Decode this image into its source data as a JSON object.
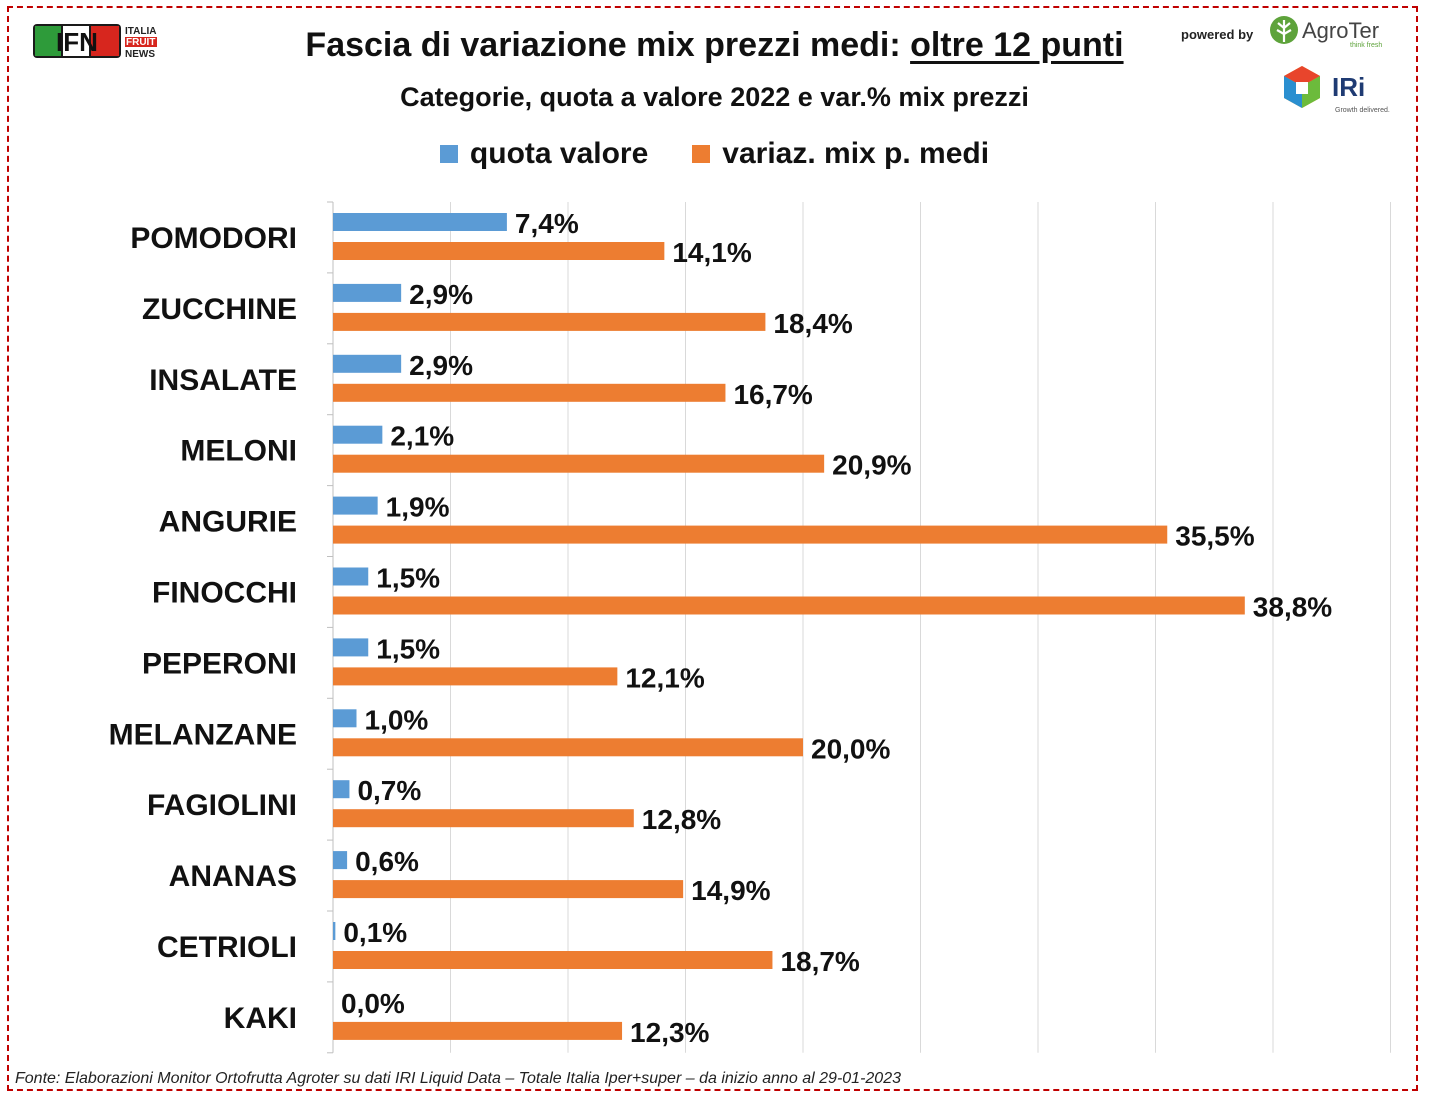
{
  "header": {
    "title_main": "Fascia di variazione mix prezzi medi: ",
    "title_underlined": "oltre 12 punti",
    "subtitle": "Categorie, quota a valore 2022 e var.% mix prezzi"
  },
  "logos": {
    "ifn_big": "IFN",
    "ifn_line1": "ITALIA",
    "ifn_line2": "FRUIT",
    "ifn_line3": "NEWS",
    "powered_by": "powered by",
    "agroter": "AgroTer",
    "agroter_tagline": "think fresh",
    "iri": "IRi",
    "iri_tagline": "Growth delivered."
  },
  "legend": {
    "quota": "quota valore",
    "variaz": "variaz. mix p. medi"
  },
  "footer": {
    "source": "Fonte: Elaborazioni Monitor Ortofrutta Agroter su dati IRI Liquid Data – Totale Italia Iper+super –  da inizio anno al 29-01-2023"
  },
  "colors": {
    "quota": "#5b9bd5",
    "variaz": "#ed7d31",
    "grid": "#d9d9d9",
    "border": "#c00000"
  },
  "chart_data": {
    "type": "bar",
    "orientation": "horizontal",
    "categories": [
      "POMODORI",
      "ZUCCHINE",
      "INSALATE",
      "MELONI",
      "ANGURIE",
      "FINOCCHI",
      "PEPERONI",
      "MELANZANE",
      "FAGIOLINI",
      "ANANAS",
      "CETRIOLI",
      "KAKI"
    ],
    "series": [
      {
        "name": "quota valore",
        "values": [
          7.4,
          2.9,
          2.9,
          2.1,
          1.9,
          1.5,
          1.5,
          1.0,
          0.7,
          0.6,
          0.1,
          0.0
        ],
        "labels": [
          "7,4%",
          "2,9%",
          "2,9%",
          "2,1%",
          "1,9%",
          "1,5%",
          "1,5%",
          "1,0%",
          "0,7%",
          "0,6%",
          "0,1%",
          "0,0%"
        ]
      },
      {
        "name": "variaz. mix p. medi",
        "values": [
          14.1,
          18.4,
          16.7,
          20.9,
          35.5,
          38.8,
          12.1,
          20.0,
          12.8,
          14.9,
          18.7,
          12.3
        ],
        "labels": [
          "14,1%",
          "18,4%",
          "16,7%",
          "20,9%",
          "35,5%",
          "38,8%",
          "12,1%",
          "20,0%",
          "12,8%",
          "14,9%",
          "18,7%",
          "12,3%"
        ]
      }
    ],
    "xlim": [
      0,
      45
    ],
    "grid": true,
    "legend": "top-center"
  }
}
